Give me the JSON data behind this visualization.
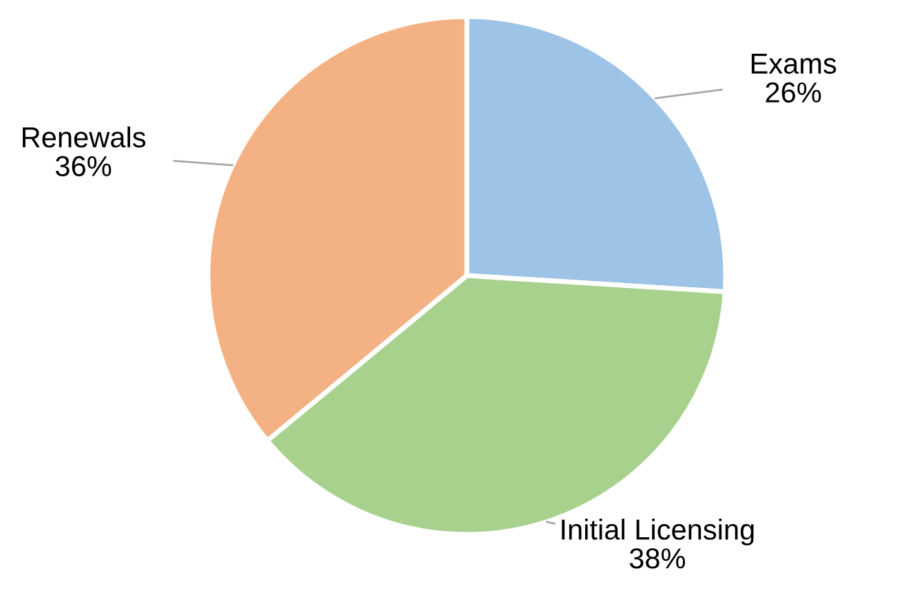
{
  "chart_data": {
    "type": "pie",
    "categories": [
      "Exams",
      "Initial Licensing",
      "Renewals"
    ],
    "values": [
      26,
      38,
      36
    ],
    "colors": [
      "#9dc3e6",
      "#a9d18e",
      "#f4b183"
    ],
    "value_labels": [
      "26%",
      "38%",
      "36%"
    ]
  }
}
